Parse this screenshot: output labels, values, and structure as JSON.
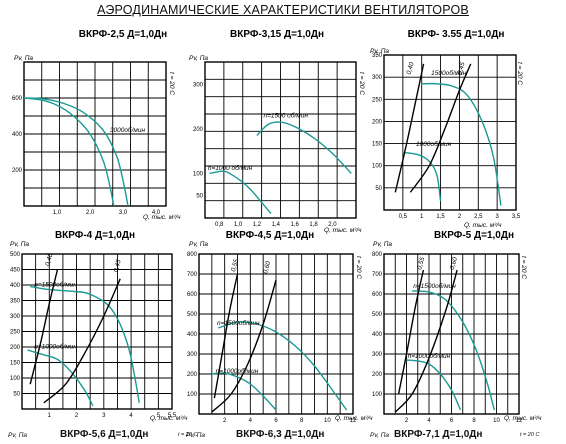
{
  "page_title": "АЭРОДИНАМИЧЕСКИЕ ХАРАКТЕРИСТИКИ ВЕНТИЛЯТОРОВ",
  "colors": {
    "curve": "#1a9a93",
    "grid": "#000000"
  },
  "chart_data": [
    {
      "type": "line",
      "title": "ВКРФ-2,5 Д=1,0Дн",
      "ylabel": "Pv, Па",
      "xlabel": "Q, тыс. м³/ч",
      "temp_label": "t = 20 С",
      "xlim": [
        0,
        4.3
      ],
      "ylim": [
        0,
        800
      ],
      "x_ticks": [
        1.0,
        2.0,
        3.0,
        4.0
      ],
      "x_tick_labels": [
        "1,0",
        "2,0",
        "3,0",
        "4,0"
      ],
      "y_ticks": [
        200,
        400,
        600
      ],
      "y_tick_labels": [
        "200",
        "400",
        "600"
      ],
      "series": [
        {
          "x": [
            0,
            0.5,
            1.0,
            1.5,
            2.0,
            2.4,
            2.6,
            2.72
          ],
          "y": [
            600,
            590,
            560,
            500,
            400,
            250,
            110,
            0
          ]
        },
        {
          "label": "3000об/мин",
          "x": [
            0,
            0.6,
            1.2,
            1.8,
            2.4,
            2.8,
            3.0,
            3.15
          ],
          "y": [
            600,
            595,
            570,
            520,
            420,
            280,
            140,
            0
          ]
        }
      ],
      "label_points": [
        [
          2.6,
          410
        ]
      ]
    },
    {
      "type": "line",
      "title": "ВКРФ-3,15 Д=1,0Дн",
      "ylabel": "Pv, Па",
      "xlabel": "Q, тыс. м³/ч",
      "temp_label": "t = 20 С",
      "xlim": [
        0.65,
        2.25
      ],
      "ylim": [
        0,
        350
      ],
      "x_ticks": [
        0.8,
        1.0,
        1.2,
        1.4,
        1.6,
        1.8,
        2.0
      ],
      "x_tick_labels": [
        "0,8",
        "1,0",
        "1,2",
        "1,4",
        "1,6",
        "1,8",
        "2,0"
      ],
      "y_ticks": [
        50,
        100,
        200,
        300
      ],
      "y_tick_labels": [
        "50",
        "100",
        "200",
        "300"
      ],
      "series": [
        {
          "label": "n=1500 об/мин",
          "x": [
            1.2,
            1.32,
            1.45,
            1.6,
            1.8,
            2.0,
            2.2
          ],
          "y": [
            185,
            210,
            215,
            205,
            180,
            145,
            100
          ]
        },
        {
          "label": "n=1000 об/мин",
          "x": [
            0.7,
            0.85,
            0.95,
            1.05,
            1.15,
            1.25,
            1.35
          ],
          "y": [
            100,
            105,
            95,
            80,
            60,
            35,
            10
          ]
        }
      ],
      "label_points": [
        [
          1.27,
          225
        ],
        [
          0.68,
          108
        ]
      ]
    },
    {
      "type": "line",
      "title": "ВКРФ- 3.55 Д=1,0Дн",
      "ylabel": "Pv, Па",
      "xlabel": "Q, тыс. м³/ч",
      "temp_label": "t = 20 С",
      "xlim": [
        0,
        3.5
      ],
      "ylim": [
        0,
        350
      ],
      "x_ticks": [
        0.5,
        1.0,
        1.5,
        2.0,
        2.5,
        3.0,
        3.5
      ],
      "x_tick_labels": [
        "0,5",
        "1",
        "1,5",
        "2",
        "2,5",
        "3",
        "3,5"
      ],
      "y_ticks": [
        50,
        100,
        150,
        200,
        250,
        300,
        350
      ],
      "y_tick_labels": [
        "50",
        "100",
        "150",
        "200",
        "250",
        "300",
        "350"
      ],
      "series": [
        {
          "label": "1500об/мин",
          "x": [
            1.0,
            1.4,
            1.8,
            2.2,
            2.6,
            2.9,
            3.1
          ],
          "y": [
            285,
            285,
            280,
            260,
            200,
            120,
            10
          ]
        },
        {
          "label": "1000об/мин",
          "x": [
            0.5,
            0.9,
            1.2,
            1.4,
            1.5
          ],
          "y": [
            130,
            125,
            110,
            80,
            20
          ]
        },
        {
          "label": "0,40",
          "kind": "eff",
          "x": [
            0.3,
            0.6,
            0.85,
            1.05
          ],
          "y": [
            40,
            150,
            250,
            330
          ]
        },
        {
          "label": "0,45",
          "kind": "eff",
          "x": [
            0.7,
            1.2,
            1.6,
            2.0,
            2.3
          ],
          "y": [
            40,
            100,
            180,
            270,
            330
          ]
        }
      ],
      "label_points": [
        [
          1.25,
          305
        ],
        [
          0.85,
          145
        ],
        [
          0.7,
          305
        ],
        [
          2.05,
          305
        ]
      ]
    },
    {
      "type": "line",
      "title": "ВКРФ-4 Д=1,0Дн",
      "ylabel": "Pv, Па",
      "xlabel": "Q, тыс. м³/ч",
      "xlim": [
        0,
        5.5
      ],
      "ylim": [
        0,
        500
      ],
      "x_ticks": [
        1,
        2,
        3,
        4,
        5,
        5.5
      ],
      "x_tick_labels": [
        "1",
        "2",
        "3",
        "4",
        "5",
        "5,5"
      ],
      "y_ticks": [
        50,
        100,
        150,
        200,
        250,
        300,
        350,
        400,
        450,
        500
      ],
      "y_tick_labels": [
        "50",
        "100",
        "150",
        "200",
        "250",
        "300",
        "350",
        "400",
        "450",
        "500"
      ],
      "series": [
        {
          "label": "n=1500об/мин",
          "x": [
            0.3,
            1.0,
            1.8,
            2.5,
            3.3,
            3.9,
            4.3
          ],
          "y": [
            395,
            385,
            380,
            370,
            320,
            200,
            20
          ]
        },
        {
          "label": "n=1000об/мин",
          "x": [
            0.2,
            0.8,
            1.3,
            1.8,
            2.3,
            2.6
          ],
          "y": [
            190,
            175,
            160,
            120,
            60,
            10
          ]
        },
        {
          "label": "0,40",
          "kind": "eff",
          "x": [
            0.3,
            0.7,
            1.0,
            1.3
          ],
          "y": [
            80,
            220,
            340,
            450
          ]
        },
        {
          "label": "0,45",
          "kind": "eff",
          "x": [
            0.8,
            1.6,
            2.3,
            3.0,
            3.6
          ],
          "y": [
            20,
            80,
            180,
            300,
            420
          ]
        }
      ],
      "label_points": [
        [
          0.45,
          395
        ],
        [
          0.45,
          195
        ],
        [
          1.0,
          460
        ],
        [
          3.5,
          440
        ]
      ]
    },
    {
      "type": "line",
      "title": "ВКРФ-4,5 Д=1,0Дн",
      "ylabel": "Pv, Па",
      "xlabel": "Q, тыс. м³/ч",
      "temp_label": "t = 20 С",
      "xlim": [
        0,
        12
      ],
      "ylim": [
        0,
        800
      ],
      "x_ticks": [
        2,
        4,
        6,
        8,
        10,
        12
      ],
      "x_tick_labels": [
        "2",
        "4",
        "6",
        "8",
        "10",
        "12"
      ],
      "y_ticks": [
        100,
        200,
        300,
        400,
        500,
        600,
        700,
        800
      ],
      "y_tick_labels": [
        "100",
        "200",
        "300",
        "400",
        "500",
        "600",
        "700",
        "800"
      ],
      "series": [
        {
          "label": "n=1500об/мин",
          "x": [
            1.5,
            3.0,
            4.5,
            6.0,
            7.5,
            9.0,
            10.5,
            11.5
          ],
          "y": [
            430,
            460,
            450,
            410,
            340,
            240,
            110,
            20
          ]
        },
        {
          "label": "n=1000об/мин",
          "x": [
            1.0,
            2.0,
            3.0,
            4.0,
            5.0,
            6.0
          ],
          "y": [
            200,
            205,
            185,
            150,
            90,
            20
          ]
        },
        {
          "label": "0,55",
          "kind": "eff",
          "x": [
            1.2,
            1.8,
            2.4,
            3.0
          ],
          "y": [
            80,
            300,
            520,
            700
          ]
        },
        {
          "label": "0,60",
          "kind": "eff",
          "x": [
            1.0,
            2.5,
            3.8,
            5.0,
            6.0
          ],
          "y": [
            10,
            100,
            250,
            450,
            670
          ]
        }
      ],
      "label_points": [
        [
          1.4,
          445
        ],
        [
          1.3,
          205
        ],
        [
          2.8,
          710
        ],
        [
          5.3,
          700
        ]
      ]
    },
    {
      "type": "line",
      "title": "ВКРФ-5 Д=1,0Дн",
      "ylabel": "Pv, Па",
      "xlabel": "Q, тыс. м³/ч",
      "temp_label": "t = 20 С",
      "xlim": [
        0,
        12
      ],
      "ylim": [
        0,
        800
      ],
      "x_ticks": [
        2,
        4,
        6,
        8,
        10,
        12
      ],
      "x_tick_labels": [
        "2",
        "4",
        "6",
        "8",
        "10",
        "12"
      ],
      "y_ticks": [
        100,
        200,
        300,
        400,
        500,
        600,
        700,
        800
      ],
      "y_tick_labels": [
        "100",
        "200",
        "300",
        "400",
        "500",
        "600",
        "700",
        "800"
      ],
      "series": [
        {
          "label": "n=1500об/мин",
          "x": [
            2.5,
            4.0,
            5.5,
            7.0,
            8.2,
            9.2,
            9.8
          ],
          "y": [
            615,
            610,
            570,
            460,
            320,
            150,
            20
          ]
        },
        {
          "label": "n=1000об/мин",
          "x": [
            2.0,
            3.0,
            4.0,
            5.0,
            6.0,
            6.8
          ],
          "y": [
            270,
            265,
            250,
            200,
            120,
            20
          ]
        },
        {
          "label": "0,55",
          "kind": "eff",
          "x": [
            1.3,
            2.0,
            2.8,
            3.5
          ],
          "y": [
            100,
            300,
            540,
            720
          ]
        },
        {
          "label": "0,60",
          "kind": "eff",
          "x": [
            1.0,
            2.5,
            4.0,
            5.5,
            6.5
          ],
          "y": [
            10,
            100,
            280,
            520,
            720
          ]
        }
      ],
      "label_points": [
        [
          2.6,
          630
        ],
        [
          2.1,
          280
        ],
        [
          3.3,
          720
        ],
        [
          6.2,
          720
        ]
      ]
    }
  ],
  "bottom_titles": [
    "ВКРФ-5,6 Д=1,0Дн",
    "ВКРФ-6,3 Д=1,0Дн",
    "ВКРФ-7,1 Д=1,0Дн"
  ],
  "bottom_ylabel": "Pv, Па",
  "bottom_temp_label": "t = 20 С"
}
